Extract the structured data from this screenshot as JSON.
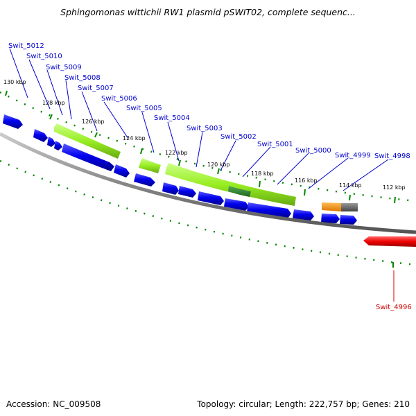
{
  "title": "Sphingomonas wittichii RW1 plasmid pSWIT02, complete sequenc...",
  "footer": {
    "accession": "Accession: NC_009508",
    "summary": "Topology: circular; Length: 222,757 bp; Genes: 210"
  },
  "colors": {
    "gene_forward": "#0000ee",
    "gene_highlight": "#99ee22",
    "gene_dark": "#338833",
    "gene_orange": "#ff9900",
    "gene_gray": "#666666",
    "gene_red": "#ee0000",
    "backbone": "#888888",
    "tick": "#008800",
    "label_blue": "#0000cc",
    "label_red": "#cc0000"
  },
  "scale_labels": [
    "130 kbp",
    "128 kbp",
    "126 kbp",
    "124 kbp",
    "122 kbp",
    "120 kbp",
    "118 kbp",
    "116 kbp",
    "114 kbp",
    "112 kbp"
  ],
  "gene_labels": [
    {
      "name": "Swit_5012",
      "color": "blue"
    },
    {
      "name": "Swit_5010",
      "color": "blue"
    },
    {
      "name": "Swit_5009",
      "color": "blue"
    },
    {
      "name": "Swit_5008",
      "color": "blue"
    },
    {
      "name": "Swit_5007",
      "color": "blue"
    },
    {
      "name": "Swit_5006",
      "color": "blue"
    },
    {
      "name": "Swit_5005",
      "color": "blue"
    },
    {
      "name": "Swit_5004",
      "color": "blue"
    },
    {
      "name": "Swit_5003",
      "color": "blue"
    },
    {
      "name": "Swit_5002",
      "color": "blue"
    },
    {
      "name": "Swit_5001",
      "color": "blue"
    },
    {
      "name": "Swit_5000",
      "color": "blue"
    },
    {
      "name": "Swit_4999",
      "color": "blue"
    },
    {
      "name": "Swit_4998",
      "color": "blue"
    },
    {
      "name": "Swit_4996",
      "color": "red"
    }
  ]
}
